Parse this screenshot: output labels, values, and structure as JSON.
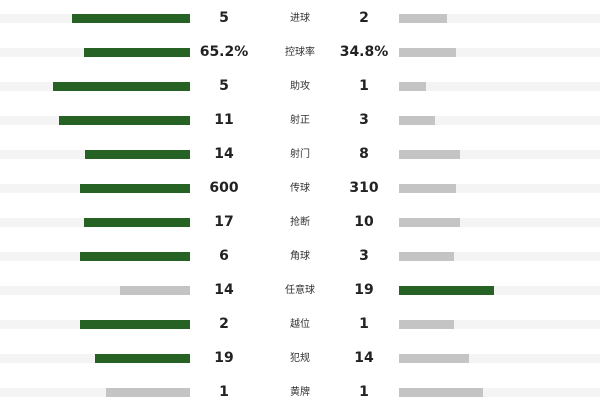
{
  "colors": {
    "leader": "#256223",
    "trailer": "#c4c4c4",
    "stripe": "#f4f4f4"
  },
  "stats": [
    {
      "label": "进球",
      "home": "5",
      "away": "2",
      "home_frac": 0.62,
      "away_frac": 0.25,
      "leader": "home"
    },
    {
      "label": "控球率",
      "home": "65.2%",
      "away": "34.8%",
      "home_frac": 0.56,
      "away_frac": 0.3,
      "leader": "home"
    },
    {
      "label": "助攻",
      "home": "5",
      "away": "1",
      "home_frac": 0.72,
      "away_frac": 0.14,
      "leader": "home"
    },
    {
      "label": "射正",
      "home": "11",
      "away": "3",
      "home_frac": 0.69,
      "away_frac": 0.19,
      "leader": "home"
    },
    {
      "label": "射门",
      "home": "14",
      "away": "8",
      "home_frac": 0.55,
      "away_frac": 0.32,
      "leader": "home"
    },
    {
      "label": "传球",
      "home": "600",
      "away": "310",
      "home_frac": 0.58,
      "away_frac": 0.3,
      "leader": "home"
    },
    {
      "label": "抢断",
      "home": "17",
      "away": "10",
      "home_frac": 0.56,
      "away_frac": 0.32,
      "leader": "home"
    },
    {
      "label": "角球",
      "home": "6",
      "away": "3",
      "home_frac": 0.58,
      "away_frac": 0.29,
      "leader": "home"
    },
    {
      "label": "任意球",
      "home": "14",
      "away": "19",
      "home_frac": 0.37,
      "away_frac": 0.5,
      "leader": "away"
    },
    {
      "label": "越位",
      "home": "2",
      "away": "1",
      "home_frac": 0.58,
      "away_frac": 0.29,
      "leader": "home"
    },
    {
      "label": "犯规",
      "home": "19",
      "away": "14",
      "home_frac": 0.5,
      "away_frac": 0.37,
      "leader": "home"
    },
    {
      "label": "黄牌",
      "home": "1",
      "away": "1",
      "home_frac": 0.44,
      "away_frac": 0.44,
      "leader": "none"
    }
  ]
}
